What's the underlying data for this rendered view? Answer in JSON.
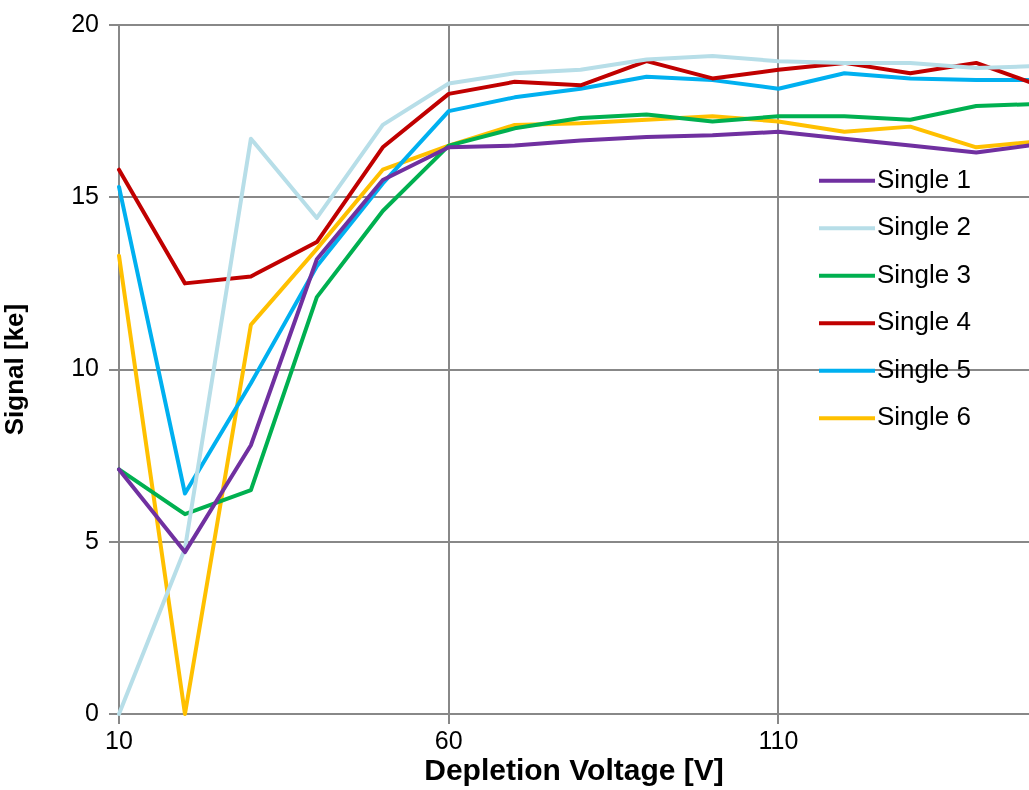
{
  "chart_data": {
    "type": "line",
    "xlabel": "Depletion Voltage [V]",
    "ylabel": "Signal [ke]",
    "x": [
      10,
      20,
      30,
      40,
      50,
      60,
      70,
      80,
      90,
      100,
      110,
      120,
      130,
      140,
      148
    ],
    "xlim": [
      10,
      148
    ],
    "xticks": [
      10,
      60,
      110
    ],
    "ylim": [
      0,
      20
    ],
    "yticks": [
      0,
      5,
      10,
      15,
      20
    ],
    "grid": true,
    "legend": "right",
    "marker": "none",
    "line_style": "solid",
    "series": [
      {
        "name": "Single 1",
        "color": "#7030a0",
        "values": [
          7.1,
          4.7,
          7.8,
          13.2,
          15.5,
          16.45,
          16.5,
          16.65,
          16.75,
          16.8,
          16.9,
          16.7,
          16.5,
          16.3,
          16.5
        ]
      },
      {
        "name": "Single 2",
        "color": "#b7dee8",
        "values": [
          0,
          4.8,
          16.7,
          14.4,
          17.1,
          18.3,
          18.6,
          18.7,
          19.0,
          19.1,
          18.95,
          18.9,
          18.9,
          18.75,
          18.8
        ]
      },
      {
        "name": "Single 3",
        "color": "#00b050",
        "values": [
          7.1,
          5.8,
          6.5,
          12.1,
          14.6,
          16.5,
          17.0,
          17.3,
          17.4,
          17.2,
          17.35,
          17.35,
          17.25,
          17.65,
          17.7
        ]
      },
      {
        "name": "Single 4",
        "color": "#c00000",
        "values": [
          15.8,
          12.5,
          12.7,
          13.7,
          16.45,
          18.0,
          18.35,
          18.25,
          18.95,
          18.45,
          18.7,
          18.9,
          18.6,
          18.9,
          18.35
        ]
      },
      {
        "name": "Single 5",
        "color": "#00b0f0",
        "values": [
          15.3,
          6.4,
          9.6,
          13.0,
          15.4,
          17.5,
          17.9,
          18.15,
          18.5,
          18.4,
          18.15,
          18.6,
          18.45,
          18.4,
          18.4
        ]
      },
      {
        "name": "Single 6",
        "color": "#ffc000",
        "values": [
          13.3,
          0,
          11.3,
          13.5,
          15.8,
          16.5,
          17.1,
          17.15,
          17.25,
          17.35,
          17.2,
          16.9,
          17.05,
          16.45,
          16.6
        ]
      }
    ]
  }
}
